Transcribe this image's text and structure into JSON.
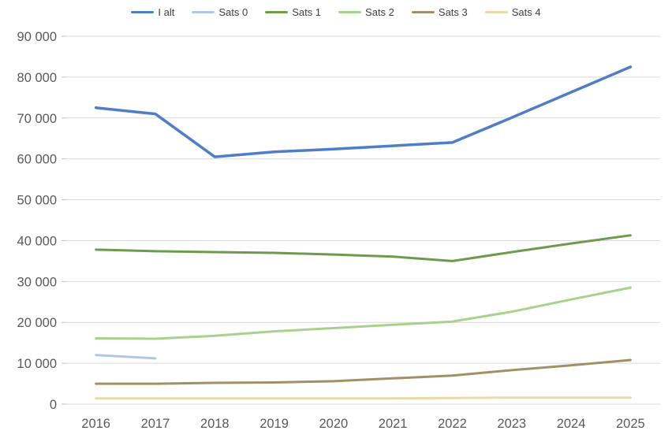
{
  "chart_data": {
    "type": "line",
    "categories": [
      "2016",
      "2017",
      "2018",
      "2019",
      "2020",
      "2021",
      "2022",
      "2023",
      "2024",
      "2025"
    ],
    "series": [
      {
        "name": "I alt",
        "color": "#4F7DC6",
        "line_width": 3.5,
        "values": [
          72500,
          71000,
          60500,
          61700,
          62400,
          63200,
          64000,
          70100,
          76300,
          82500
        ]
      },
      {
        "name": "Sats 0",
        "color": "#B3C6E7",
        "line_width": 3,
        "values": [
          12000,
          11200,
          null,
          null,
          null,
          null,
          null,
          null,
          null,
          null
        ]
      },
      {
        "name": "Sats 1",
        "color": "#6E9A4E",
        "line_width": 3,
        "values": [
          37800,
          37400,
          37200,
          37000,
          36600,
          36100,
          35000,
          37200,
          39300,
          41300
        ]
      },
      {
        "name": "Sats 2",
        "color": "#A9D18E",
        "line_width": 3,
        "values": [
          16100,
          16000,
          16700,
          17800,
          18600,
          19400,
          20200,
          22600,
          25600,
          28500
        ]
      },
      {
        "name": "Sats 3",
        "color": "#9F9065",
        "line_width": 3,
        "values": [
          5000,
          5000,
          5200,
          5300,
          5600,
          6300,
          7000,
          8300,
          9500,
          10800
        ]
      },
      {
        "name": "Sats 4",
        "color": "#EADAA9",
        "line_width": 3,
        "values": [
          1400,
          1400,
          1400,
          1400,
          1400,
          1400,
          1500,
          1600,
          1600,
          1600
        ]
      }
    ],
    "title": "",
    "xlabel": "",
    "ylabel": "",
    "y_axis": {
      "min": 0,
      "max": 90000,
      "tick_step": 10000,
      "tick_labels": [
        "0",
        "10 000",
        "20 000",
        "30 000",
        "40 000",
        "50 000",
        "60 000",
        "70 000",
        "80 000",
        "90 000"
      ]
    },
    "x_axis": {
      "tick_labels": [
        "2016",
        "2017",
        "2018",
        "2019",
        "2020",
        "2021",
        "2022",
        "2023",
        "2024",
        "2025"
      ]
    },
    "grid": true,
    "legend_position": "top"
  },
  "colors": {
    "background": "#FFFFFF",
    "gridline": "#D9D9D9",
    "tick": "#BFBFBF",
    "axis_text": "#595959",
    "legend_text": "#404040"
  }
}
